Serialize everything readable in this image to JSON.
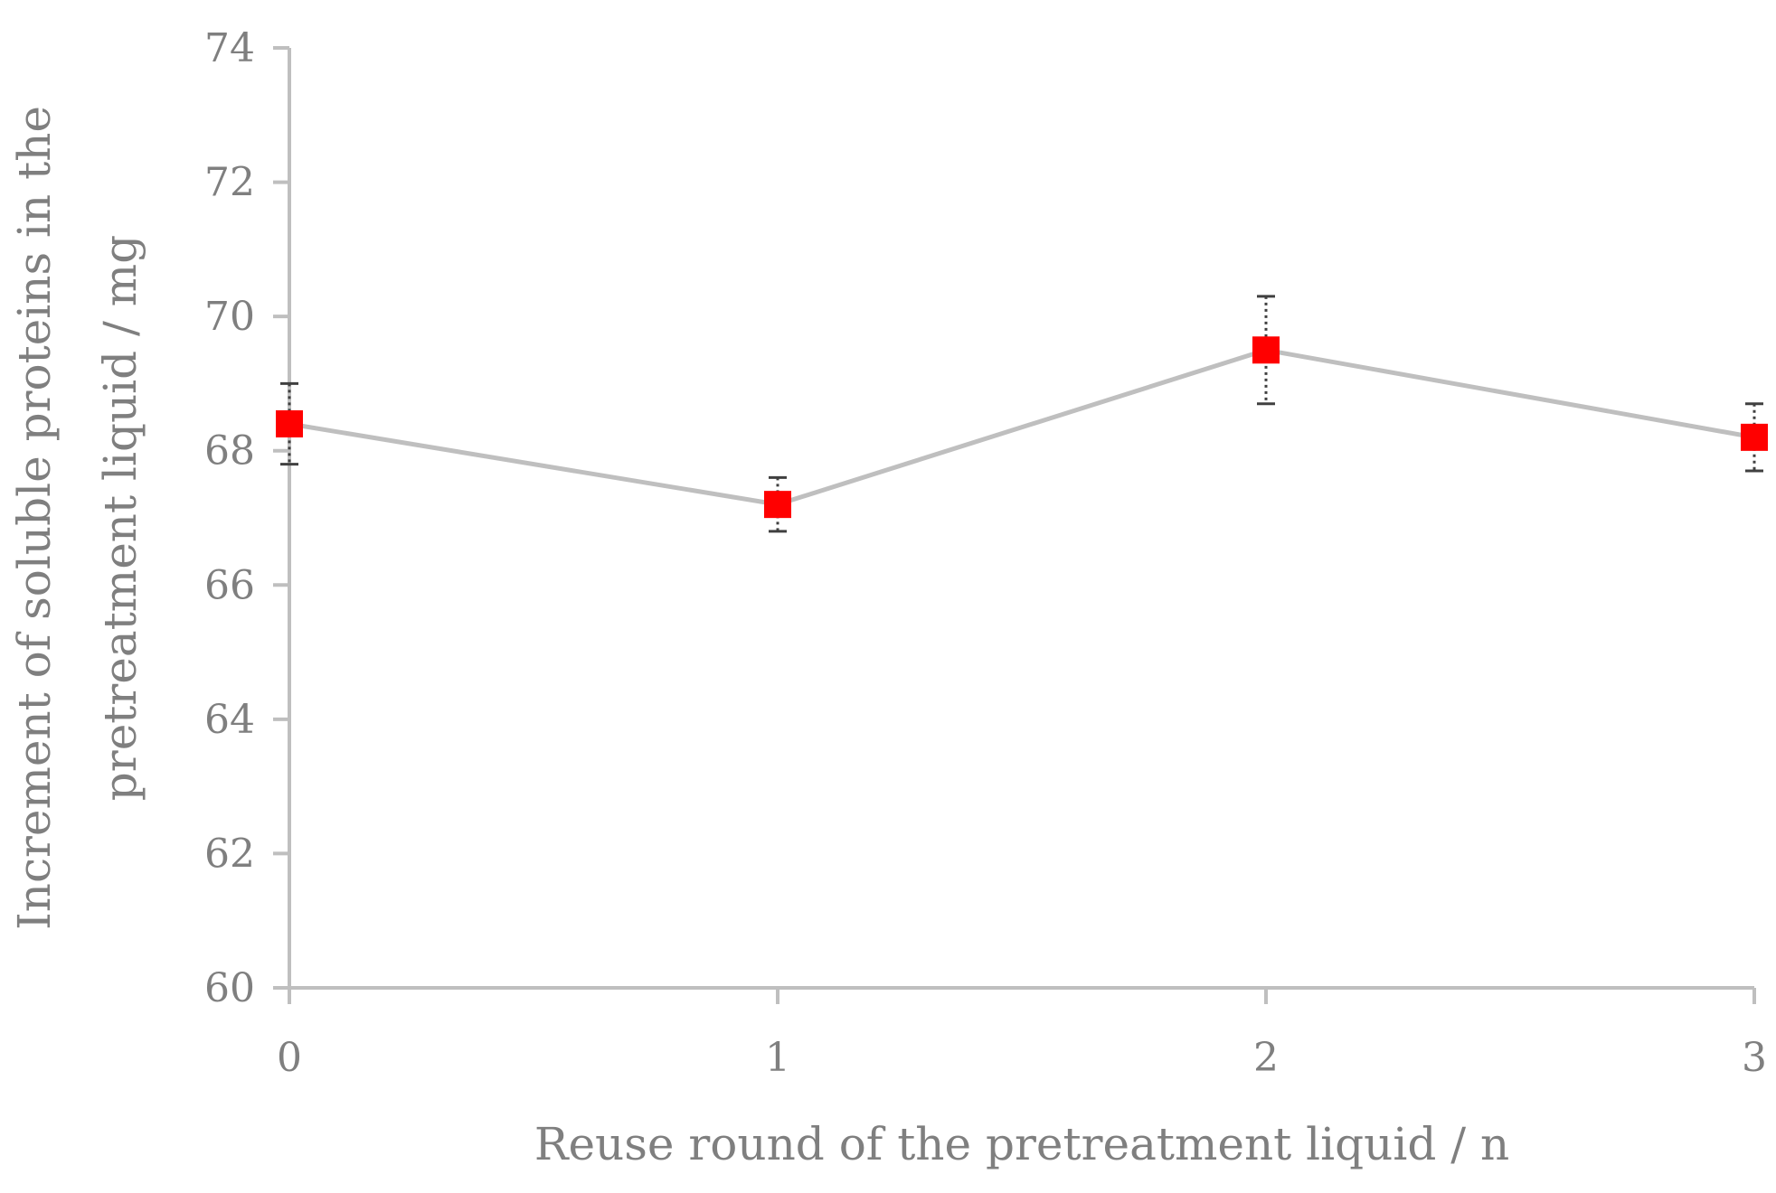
{
  "chart_data": {
    "type": "line",
    "title": "",
    "xlabel": "Reuse round of the pretreatment  liquid / n",
    "ylabel_lines": [
      "Increment of soluble proteins in the",
      "pretreatment  liquid  / mg"
    ],
    "x_ticks": [
      "0",
      "1",
      "2",
      "3"
    ],
    "y_ticks": [
      "60",
      "62",
      "64",
      "66",
      "68",
      "70",
      "72",
      "74"
    ],
    "xlim": [
      0,
      3
    ],
    "ylim": [
      60,
      74
    ],
    "grid": false,
    "series": [
      {
        "x": [
          0,
          1,
          2,
          3
        ],
        "values": [
          68.4,
          67.2,
          69.5,
          68.2
        ],
        "error": [
          0.6,
          0.4,
          0.8,
          0.5
        ],
        "marker": "square",
        "marker_color": "#ff0000",
        "line_color": "#bfbfbf"
      }
    ],
    "axis_color": "#bfbfbf",
    "text_color": "#7f7f7f",
    "errorbar_color": "#404040"
  }
}
